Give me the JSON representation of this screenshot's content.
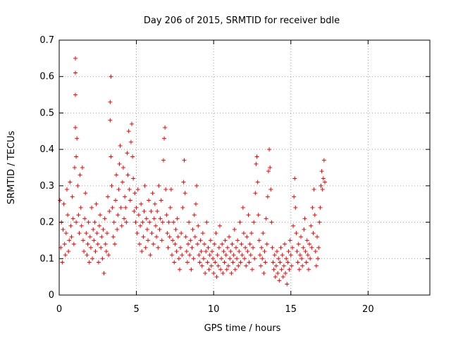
{
  "chart_data": {
    "type": "scatter",
    "title": "Day 206 of 2015, SRMTID for receiver bdle",
    "xlabel": "GPS time / hours",
    "ylabel": "SRMTID / TECUs",
    "xlim": [
      0,
      24
    ],
    "ylim": [
      0,
      0.7
    ],
    "xticks": [
      0,
      5,
      10,
      15,
      20
    ],
    "xtick_labels": [
      "0",
      "5",
      "10",
      "15",
      "20"
    ],
    "yticks": [
      0,
      0.1,
      0.2,
      0.3,
      0.4,
      0.5,
      0.6,
      0.7
    ],
    "ytick_labels": [
      "0",
      "0.1",
      "0.2",
      "0.3",
      "0.4",
      "0.5",
      "0.6",
      "0.7"
    ],
    "grid": true,
    "marker": "+",
    "color": "#ff0000",
    "series": [
      {
        "name": "SRMTID",
        "x": [
          0.05,
          0.1,
          0.15,
          0.2,
          0.25,
          0.3,
          0.35,
          0.4,
          0.45,
          0.5,
          0.55,
          0.6,
          0.65,
          0.7,
          0.75,
          0.8,
          0.85,
          0.9,
          0.95,
          1.0,
          1.05,
          1.05,
          1.05,
          1.05,
          1.1,
          1.1,
          1.15,
          1.2,
          1.25,
          1.3,
          1.35,
          1.4,
          1.45,
          1.5,
          1.55,
          1.6,
          1.65,
          1.7,
          1.75,
          1.8,
          1.85,
          1.9,
          1.95,
          2.0,
          2.05,
          2.1,
          2.15,
          2.2,
          2.25,
          2.3,
          2.35,
          2.4,
          2.45,
          2.5,
          2.55,
          2.6,
          2.65,
          2.7,
          2.75,
          2.8,
          2.85,
          2.9,
          2.95,
          3.0,
          3.05,
          3.1,
          3.15,
          3.2,
          3.25,
          3.3,
          3.3,
          3.35,
          3.35,
          3.4,
          3.45,
          3.5,
          3.55,
          3.6,
          3.65,
          3.7,
          3.75,
          3.8,
          3.85,
          3.9,
          3.95,
          4.0,
          4.05,
          4.1,
          4.15,
          4.2,
          4.25,
          4.3,
          4.35,
          4.4,
          4.45,
          4.5,
          4.55,
          4.6,
          4.65,
          4.7,
          4.75,
          4.8,
          4.85,
          4.9,
          4.95,
          5.0,
          5.05,
          5.1,
          5.15,
          5.2,
          5.25,
          5.3,
          5.35,
          5.4,
          5.45,
          5.5,
          5.55,
          5.6,
          5.65,
          5.7,
          5.75,
          5.8,
          5.85,
          5.9,
          5.95,
          6.0,
          6.05,
          6.1,
          6.15,
          6.2,
          6.25,
          6.3,
          6.35,
          6.4,
          6.45,
          6.5,
          6.55,
          6.6,
          6.65,
          6.7,
          6.75,
          6.8,
          6.85,
          6.9,
          6.95,
          7.0,
          7.05,
          7.1,
          7.15,
          7.2,
          7.25,
          7.3,
          7.35,
          7.4,
          7.45,
          7.5,
          7.55,
          7.6,
          7.65,
          7.7,
          7.75,
          7.8,
          7.85,
          7.9,
          7.95,
          8.0,
          8.05,
          8.1,
          8.15,
          8.2,
          8.25,
          8.3,
          8.35,
          8.4,
          8.45,
          8.5,
          8.55,
          8.6,
          8.65,
          8.7,
          8.75,
          8.8,
          8.85,
          8.9,
          8.95,
          9.0,
          9.05,
          9.1,
          9.15,
          9.2,
          9.25,
          9.3,
          9.35,
          9.4,
          9.45,
          9.5,
          9.55,
          9.6,
          9.65,
          9.7,
          9.75,
          9.8,
          9.85,
          9.9,
          9.95,
          10.0,
          10.05,
          10.1,
          10.15,
          10.2,
          10.25,
          10.3,
          10.35,
          10.4,
          10.45,
          10.5,
          10.55,
          10.6,
          10.65,
          10.7,
          10.75,
          10.8,
          10.85,
          10.9,
          10.95,
          11.0,
          11.05,
          11.1,
          11.15,
          11.2,
          11.25,
          11.3,
          11.35,
          11.4,
          11.45,
          11.5,
          11.55,
          11.6,
          11.65,
          11.7,
          11.75,
          11.8,
          11.85,
          11.9,
          11.95,
          12.0,
          12.05,
          12.1,
          12.15,
          12.2,
          12.25,
          12.3,
          12.35,
          12.4,
          12.45,
          12.5,
          12.55,
          12.6,
          12.65,
          12.7,
          12.75,
          12.8,
          12.85,
          12.9,
          12.95,
          13.0,
          13.05,
          13.1,
          13.15,
          13.2,
          13.25,
          13.3,
          13.35,
          13.4,
          13.45,
          13.5,
          13.55,
          13.6,
          13.65,
          13.7,
          13.75,
          13.8,
          13.85,
          13.9,
          13.95,
          14.0,
          14.05,
          14.1,
          14.15,
          14.2,
          14.25,
          14.3,
          14.35,
          14.4,
          14.45,
          14.5,
          14.55,
          14.6,
          14.65,
          14.7,
          14.75,
          14.8,
          14.85,
          14.9,
          14.95,
          15.0,
          15.05,
          15.1,
          15.15,
          15.2,
          15.25,
          15.3,
          15.35,
          15.4,
          15.45,
          15.5,
          15.55,
          15.6,
          15.65,
          15.7,
          15.75,
          15.8,
          15.85,
          15.9,
          15.95,
          16.0,
          16.05,
          16.1,
          16.15,
          16.2,
          16.25,
          16.3,
          16.35,
          16.4,
          16.45,
          16.5,
          16.55,
          16.6,
          16.65,
          16.7,
          16.75,
          16.8,
          16.85,
          16.9,
          16.95,
          17.0,
          17.05,
          17.1,
          17.15,
          17.2
        ],
        "y": [
          0.26,
          0.13,
          0.2,
          0.09,
          0.18,
          0.25,
          0.14,
          0.11,
          0.17,
          0.29,
          0.22,
          0.12,
          0.15,
          0.31,
          0.19,
          0.16,
          0.27,
          0.21,
          0.14,
          0.35,
          0.46,
          0.55,
          0.61,
          0.65,
          0.38,
          0.2,
          0.43,
          0.3,
          0.22,
          0.17,
          0.33,
          0.24,
          0.19,
          0.35,
          0.15,
          0.12,
          0.21,
          0.28,
          0.17,
          0.11,
          0.14,
          0.2,
          0.09,
          0.16,
          0.13,
          0.24,
          0.1,
          0.18,
          0.15,
          0.2,
          0.12,
          0.25,
          0.17,
          0.14,
          0.09,
          0.19,
          0.22,
          0.13,
          0.16,
          0.1,
          0.18,
          0.06,
          0.21,
          0.14,
          0.12,
          0.17,
          0.27,
          0.11,
          0.23,
          0.48,
          0.53,
          0.6,
          0.38,
          0.3,
          0.24,
          0.16,
          0.2,
          0.14,
          0.26,
          0.33,
          0.18,
          0.22,
          0.29,
          0.36,
          0.41,
          0.24,
          0.19,
          0.31,
          0.35,
          0.21,
          0.27,
          0.24,
          0.2,
          0.39,
          0.33,
          0.45,
          0.29,
          0.26,
          0.42,
          0.47,
          0.38,
          0.32,
          0.23,
          0.28,
          0.2,
          0.24,
          0.17,
          0.29,
          0.22,
          0.14,
          0.19,
          0.25,
          0.12,
          0.2,
          0.16,
          0.23,
          0.3,
          0.13,
          0.21,
          0.18,
          0.15,
          0.26,
          0.2,
          0.11,
          0.23,
          0.17,
          0.28,
          0.14,
          0.21,
          0.25,
          0.19,
          0.16,
          0.23,
          0.13,
          0.3,
          0.18,
          0.21,
          0.26,
          0.15,
          0.2,
          0.37,
          0.43,
          0.46,
          0.29,
          0.22,
          0.17,
          0.13,
          0.2,
          0.16,
          0.24,
          0.29,
          0.11,
          0.15,
          0.2,
          0.09,
          0.14,
          0.18,
          0.12,
          0.21,
          0.16,
          0.1,
          0.07,
          0.13,
          0.17,
          0.11,
          0.24,
          0.31,
          0.37,
          0.28,
          0.16,
          0.12,
          0.09,
          0.14,
          0.2,
          0.11,
          0.15,
          0.07,
          0.13,
          0.18,
          0.1,
          0.22,
          0.16,
          0.25,
          0.3,
          0.14,
          0.19,
          0.11,
          0.09,
          0.15,
          0.12,
          0.08,
          0.17,
          0.1,
          0.14,
          0.06,
          0.12,
          0.2,
          0.09,
          0.13,
          0.07,
          0.11,
          0.15,
          0.08,
          0.12,
          0.1,
          0.06,
          0.14,
          0.09,
          0.17,
          0.05,
          0.11,
          0.08,
          0.13,
          0.19,
          0.07,
          0.1,
          0.14,
          0.06,
          0.12,
          0.09,
          0.15,
          0.11,
          0.07,
          0.13,
          0.08,
          0.16,
          0.1,
          0.12,
          0.06,
          0.14,
          0.09,
          0.11,
          0.18,
          0.07,
          0.13,
          0.1,
          0.15,
          0.08,
          0.12,
          0.2,
          0.09,
          0.14,
          0.11,
          0.24,
          0.17,
          0.1,
          0.13,
          0.08,
          0.16,
          0.12,
          0.22,
          0.09,
          0.14,
          0.11,
          0.17,
          0.07,
          0.13,
          0.2,
          0.1,
          0.28,
          0.36,
          0.38,
          0.31,
          0.22,
          0.15,
          0.11,
          0.08,
          0.13,
          0.1,
          0.17,
          0.06,
          0.12,
          0.09,
          0.21,
          0.14,
          0.27,
          0.34,
          0.4,
          0.35,
          0.29,
          0.2,
          0.13,
          0.09,
          0.07,
          0.11,
          0.05,
          0.08,
          0.12,
          0.06,
          0.1,
          0.04,
          0.09,
          0.13,
          0.07,
          0.11,
          0.05,
          0.08,
          0.14,
          0.06,
          0.1,
          0.03,
          0.09,
          0.12,
          0.07,
          0.15,
          0.11,
          0.08,
          0.13,
          0.19,
          0.27,
          0.32,
          0.24,
          0.17,
          0.12,
          0.09,
          0.14,
          0.07,
          0.11,
          0.16,
          0.1,
          0.08,
          0.13,
          0.18,
          0.21,
          0.12,
          0.09,
          0.15,
          0.11,
          0.07,
          0.14,
          0.1,
          0.19,
          0.13,
          0.24,
          0.17,
          0.29,
          0.22,
          0.12,
          0.08,
          0.16,
          0.1,
          0.13,
          0.2,
          0.24,
          0.3,
          0.34,
          0.29,
          0.32,
          0.37,
          0.31
        ]
      }
    ]
  }
}
